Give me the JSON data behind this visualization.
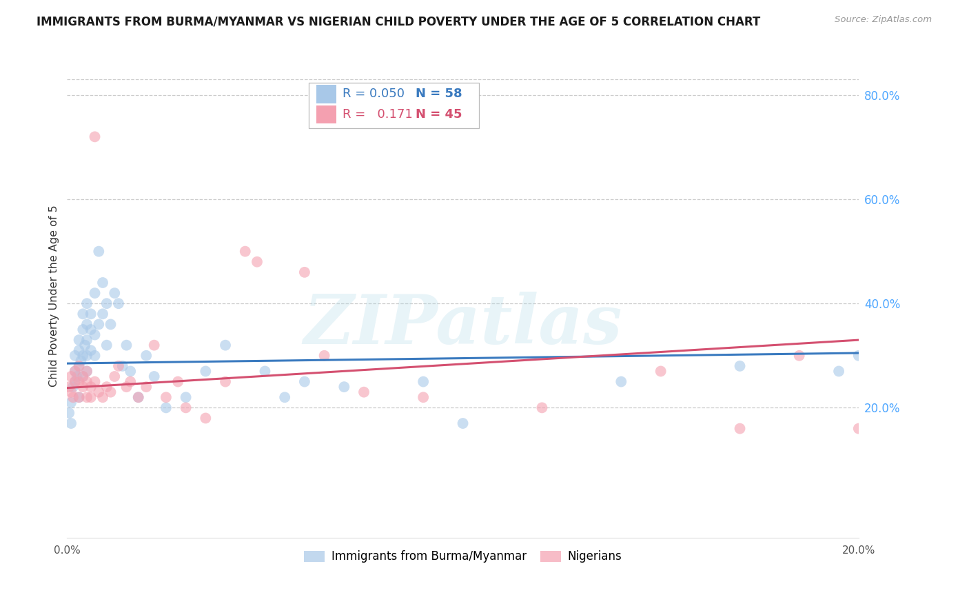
{
  "title": "IMMIGRANTS FROM BURMA/MYANMAR VS NIGERIAN CHILD POVERTY UNDER THE AGE OF 5 CORRELATION CHART",
  "source": "Source: ZipAtlas.com",
  "ylabel": "Child Poverty Under the Age of 5",
  "xlim": [
    0.0,
    0.2
  ],
  "ylim": [
    -0.05,
    0.88
  ],
  "right_ytick_vals": [
    0.2,
    0.4,
    0.6,
    0.8
  ],
  "right_yticklabels": [
    "20.0%",
    "40.0%",
    "60.0%",
    "80.0%"
  ],
  "xtick_vals": [
    0.0,
    0.05,
    0.1,
    0.15,
    0.2
  ],
  "xticklabels": [
    "0.0%",
    "",
    "",
    "",
    "20.0%"
  ],
  "blue_color": "#a8c8e8",
  "pink_color": "#f4a0b0",
  "line_blue": "#3a7abf",
  "line_pink": "#d45070",
  "watermark": "ZIPatlas",
  "blue_r": "R = 0.050",
  "blue_n": "N = 58",
  "pink_r": "R =   0.171",
  "pink_n": "N = 45",
  "blue_x": [
    0.0005,
    0.001,
    0.001,
    0.0015,
    0.002,
    0.002,
    0.002,
    0.0025,
    0.003,
    0.003,
    0.003,
    0.003,
    0.0035,
    0.004,
    0.004,
    0.004,
    0.004,
    0.0045,
    0.005,
    0.005,
    0.005,
    0.005,
    0.005,
    0.006,
    0.006,
    0.006,
    0.007,
    0.007,
    0.007,
    0.008,
    0.008,
    0.009,
    0.009,
    0.01,
    0.01,
    0.011,
    0.012,
    0.013,
    0.014,
    0.015,
    0.016,
    0.018,
    0.02,
    0.022,
    0.025,
    0.03,
    0.035,
    0.04,
    0.05,
    0.055,
    0.06,
    0.07,
    0.09,
    0.1,
    0.14,
    0.17,
    0.195,
    0.2
  ],
  "blue_y": [
    0.19,
    0.17,
    0.21,
    0.24,
    0.25,
    0.27,
    0.3,
    0.26,
    0.22,
    0.28,
    0.31,
    0.33,
    0.29,
    0.26,
    0.3,
    0.35,
    0.38,
    0.32,
    0.27,
    0.3,
    0.33,
    0.36,
    0.4,
    0.31,
    0.35,
    0.38,
    0.3,
    0.34,
    0.42,
    0.36,
    0.5,
    0.38,
    0.44,
    0.32,
    0.4,
    0.36,
    0.42,
    0.4,
    0.28,
    0.32,
    0.27,
    0.22,
    0.3,
    0.26,
    0.2,
    0.22,
    0.27,
    0.32,
    0.27,
    0.22,
    0.25,
    0.24,
    0.25,
    0.17,
    0.25,
    0.28,
    0.27,
    0.3
  ],
  "pink_x": [
    0.0005,
    0.001,
    0.001,
    0.0015,
    0.002,
    0.002,
    0.003,
    0.003,
    0.003,
    0.004,
    0.004,
    0.005,
    0.005,
    0.005,
    0.006,
    0.006,
    0.007,
    0.007,
    0.008,
    0.009,
    0.01,
    0.011,
    0.012,
    0.013,
    0.015,
    0.016,
    0.018,
    0.02,
    0.022,
    0.025,
    0.028,
    0.03,
    0.035,
    0.04,
    0.045,
    0.048,
    0.06,
    0.065,
    0.075,
    0.09,
    0.12,
    0.15,
    0.17,
    0.185,
    0.2
  ],
  "pink_y": [
    0.24,
    0.23,
    0.26,
    0.22,
    0.25,
    0.27,
    0.22,
    0.25,
    0.28,
    0.24,
    0.26,
    0.22,
    0.25,
    0.27,
    0.22,
    0.24,
    0.72,
    0.25,
    0.23,
    0.22,
    0.24,
    0.23,
    0.26,
    0.28,
    0.24,
    0.25,
    0.22,
    0.24,
    0.32,
    0.22,
    0.25,
    0.2,
    0.18,
    0.25,
    0.5,
    0.48,
    0.46,
    0.3,
    0.23,
    0.22,
    0.2,
    0.27,
    0.16,
    0.3,
    0.16
  ],
  "blue_line_x": [
    0.0,
    0.2
  ],
  "blue_line_y": [
    0.285,
    0.305
  ],
  "pink_line_x": [
    0.0,
    0.2
  ],
  "pink_line_y": [
    0.238,
    0.33
  ]
}
